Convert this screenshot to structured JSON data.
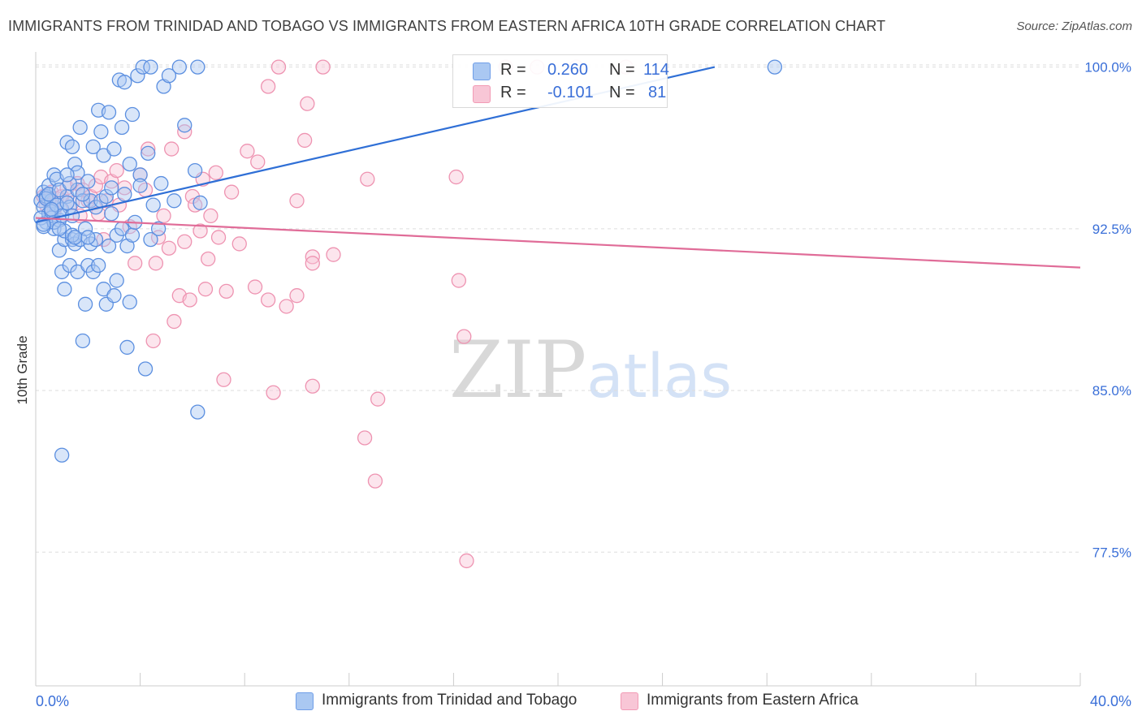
{
  "title": "IMMIGRANTS FROM TRINIDAD AND TOBAGO VS IMMIGRANTS FROM EASTERN AFRICA 10TH GRADE CORRELATION CHART",
  "source": "Source: ZipAtlas.com",
  "watermark": {
    "zip": "ZIP",
    "atlas": "atlas"
  },
  "legend": {
    "rows": [
      {
        "r_label": "R =",
        "r_value": "0.260",
        "n_label": "N =",
        "n_value": "114",
        "color": "#6f9ee8"
      },
      {
        "r_label": "R =",
        "r_value": "-0.101",
        "n_label": "N =",
        "n_value": "81",
        "color": "#f29bb5"
      }
    ]
  },
  "colors": {
    "blue_fill": "#aac8f2",
    "blue_stroke": "#5b8fe0",
    "blue_line": "#2f6fd6",
    "pink_fill": "#f8c6d6",
    "pink_stroke": "#ee93b1",
    "pink_line": "#e06c98",
    "tick_label": "#3a6fd8",
    "grid": "#dddddd"
  },
  "chart_data": {
    "type": "scatter",
    "title": "IMMIGRANTS FROM TRINIDAD AND TOBAGO VS IMMIGRANTS FROM EASTERN AFRICA 10TH GRADE CORRELATION CHART",
    "xlabel": "",
    "ylabel": "10th Grade",
    "xlim": [
      0,
      40
    ],
    "ylim": [
      71.3,
      100.7
    ],
    "x_tick_labels": [
      "0.0%",
      "40.0%"
    ],
    "y_ticks": [
      77.5,
      85.0,
      92.5,
      100.0
    ],
    "y_tick_labels": [
      "77.5%",
      "85.0%",
      "92.5%",
      "100.0%"
    ],
    "grid": true,
    "legend_position": "top-center",
    "series": [
      {
        "name": "Immigrants from Trinidad and Tobago",
        "color": "#6f9ee8",
        "trend": {
          "x": [
            0,
            26
          ],
          "y": [
            92.8,
            100.0
          ]
        },
        "points": [
          [
            0.2,
            93.8
          ],
          [
            0.3,
            94.2
          ],
          [
            0.3,
            93.5
          ],
          [
            0.4,
            92.8
          ],
          [
            0.4,
            94.0
          ],
          [
            0.5,
            93.2
          ],
          [
            0.5,
            94.5
          ],
          [
            0.6,
            93.0
          ],
          [
            0.6,
            93.8
          ],
          [
            0.7,
            95.0
          ],
          [
            0.7,
            92.5
          ],
          [
            0.8,
            93.6
          ],
          [
            0.8,
            94.8
          ],
          [
            0.9,
            91.5
          ],
          [
            0.9,
            92.9
          ],
          [
            1.0,
            93.4
          ],
          [
            1.0,
            90.5
          ],
          [
            1.1,
            92.0
          ],
          [
            1.1,
            89.7
          ],
          [
            1.2,
            94.0
          ],
          [
            1.2,
            96.5
          ],
          [
            1.3,
            93.5
          ],
          [
            1.3,
            90.8
          ],
          [
            1.4,
            92.0
          ],
          [
            1.4,
            96.3
          ],
          [
            1.5,
            95.5
          ],
          [
            1.5,
            91.8
          ],
          [
            1.6,
            94.3
          ],
          [
            1.6,
            90.5
          ],
          [
            1.7,
            97.2
          ],
          [
            1.7,
            92.0
          ],
          [
            1.8,
            87.3
          ],
          [
            1.8,
            93.8
          ],
          [
            1.9,
            89.0
          ],
          [
            1.9,
            92.5
          ],
          [
            2.0,
            90.8
          ],
          [
            2.0,
            94.7
          ],
          [
            2.1,
            91.8
          ],
          [
            2.1,
            93.8
          ],
          [
            2.2,
            96.3
          ],
          [
            2.2,
            90.5
          ],
          [
            2.3,
            93.5
          ],
          [
            2.3,
            92.0
          ],
          [
            2.4,
            98.0
          ],
          [
            2.4,
            90.8
          ],
          [
            2.5,
            97.0
          ],
          [
            2.5,
            93.8
          ],
          [
            2.6,
            89.7
          ],
          [
            2.6,
            95.9
          ],
          [
            2.7,
            89.0
          ],
          [
            2.7,
            94.0
          ],
          [
            2.8,
            97.9
          ],
          [
            2.8,
            91.7
          ],
          [
            2.9,
            93.2
          ],
          [
            2.9,
            94.4
          ],
          [
            3.0,
            89.4
          ],
          [
            3.0,
            96.2
          ],
          [
            3.1,
            90.1
          ],
          [
            3.1,
            92.2
          ],
          [
            3.2,
            99.4
          ],
          [
            3.3,
            92.5
          ],
          [
            3.3,
            97.2
          ],
          [
            3.4,
            94.1
          ],
          [
            3.4,
            99.3
          ],
          [
            3.5,
            87.0
          ],
          [
            3.5,
            91.7
          ],
          [
            3.6,
            89.1
          ],
          [
            3.6,
            95.5
          ],
          [
            3.7,
            92.2
          ],
          [
            3.7,
            97.8
          ],
          [
            3.8,
            92.8
          ],
          [
            3.9,
            99.6
          ],
          [
            4.0,
            95.0
          ],
          [
            4.0,
            94.5
          ],
          [
            4.1,
            100.0
          ],
          [
            4.2,
            86.0
          ],
          [
            4.3,
            96.0
          ],
          [
            4.4,
            100.0
          ],
          [
            4.4,
            92.0
          ],
          [
            4.5,
            93.6
          ],
          [
            4.7,
            92.5
          ],
          [
            4.8,
            94.6
          ],
          [
            4.9,
            99.1
          ],
          [
            5.1,
            99.6
          ],
          [
            5.3,
            93.8
          ],
          [
            5.7,
            97.3
          ],
          [
            6.1,
            95.2
          ],
          [
            6.2,
            84.0
          ],
          [
            6.3,
            93.7
          ],
          [
            0.2,
            93.0
          ],
          [
            0.3,
            92.6
          ],
          [
            0.4,
            93.9
          ],
          [
            0.5,
            94.1
          ],
          [
            0.6,
            93.3
          ],
          [
            0.7,
            92.8
          ],
          [
            0.8,
            93.6
          ],
          [
            0.9,
            94.3
          ],
          [
            1.0,
            93.1
          ],
          [
            1.1,
            92.4
          ],
          [
            1.2,
            93.7
          ],
          [
            1.3,
            94.6
          ],
          [
            1.4,
            92.2
          ],
          [
            1.5,
            92.1
          ],
          [
            1.6,
            95.1
          ],
          [
            1.0,
            82.0
          ],
          [
            2.0,
            92.1
          ],
          [
            1.2,
            95.0
          ],
          [
            5.5,
            100.0
          ],
          [
            6.2,
            100.0
          ],
          [
            28.3,
            100.0
          ],
          [
            0.3,
            92.7
          ],
          [
            0.6,
            93.4
          ],
          [
            0.9,
            92.5
          ],
          [
            1.4,
            93.1
          ],
          [
            1.8,
            94.1
          ]
        ]
      },
      {
        "name": "Immigrants from Eastern Africa",
        "color": "#f29bb5",
        "trend": {
          "x": [
            0,
            40
          ],
          "y": [
            93.0,
            90.7
          ]
        },
        "points": [
          [
            0.3,
            94.0
          ],
          [
            0.4,
            93.6
          ],
          [
            0.5,
            93.8
          ],
          [
            0.6,
            94.2
          ],
          [
            0.7,
            93.3
          ],
          [
            0.8,
            93.9
          ],
          [
            1.0,
            94.0
          ],
          [
            1.2,
            94.4
          ],
          [
            1.4,
            93.7
          ],
          [
            1.6,
            94.6
          ],
          [
            1.7,
            93.1
          ],
          [
            1.8,
            94.3
          ],
          [
            2.0,
            93.8
          ],
          [
            2.1,
            94.0
          ],
          [
            2.3,
            94.5
          ],
          [
            2.4,
            93.2
          ],
          [
            2.5,
            94.9
          ],
          [
            2.6,
            92.0
          ],
          [
            2.7,
            93.8
          ],
          [
            2.9,
            94.7
          ],
          [
            3.1,
            95.2
          ],
          [
            3.2,
            93.6
          ],
          [
            3.4,
            94.4
          ],
          [
            3.6,
            92.6
          ],
          [
            3.8,
            90.9
          ],
          [
            4.0,
            95.0
          ],
          [
            4.2,
            94.3
          ],
          [
            4.3,
            96.2
          ],
          [
            4.5,
            87.3
          ],
          [
            4.6,
            90.9
          ],
          [
            4.7,
            92.1
          ],
          [
            4.9,
            93.1
          ],
          [
            5.1,
            91.6
          ],
          [
            5.2,
            96.2
          ],
          [
            5.3,
            88.2
          ],
          [
            5.5,
            89.4
          ],
          [
            5.7,
            91.9
          ],
          [
            5.9,
            89.2
          ],
          [
            6.0,
            94.0
          ],
          [
            6.1,
            93.6
          ],
          [
            6.3,
            92.4
          ],
          [
            6.5,
            89.7
          ],
          [
            6.6,
            91.1
          ],
          [
            6.7,
            93.1
          ],
          [
            6.9,
            95.1
          ],
          [
            7.0,
            92.1
          ],
          [
            7.3,
            89.6
          ],
          [
            7.5,
            94.2
          ],
          [
            7.8,
            91.8
          ],
          [
            8.1,
            96.1
          ],
          [
            8.4,
            89.8
          ],
          [
            8.5,
            95.6
          ],
          [
            8.9,
            89.2
          ],
          [
            8.9,
            99.1
          ],
          [
            9.1,
            84.9
          ],
          [
            9.6,
            88.9
          ],
          [
            10.0,
            89.4
          ],
          [
            10.0,
            93.8
          ],
          [
            10.3,
            96.6
          ],
          [
            10.4,
            98.3
          ],
          [
            10.6,
            85.2
          ],
          [
            10.6,
            91.2
          ],
          [
            10.6,
            90.9
          ],
          [
            11.4,
            91.3
          ],
          [
            12.6,
            82.8
          ],
          [
            13.0,
            80.8
          ],
          [
            13.1,
            84.6
          ],
          [
            16.4,
            87.5
          ],
          [
            16.1,
            94.9
          ],
          [
            16.2,
            90.1
          ],
          [
            16.5,
            77.1
          ],
          [
            18.0,
            100.0
          ],
          [
            19.2,
            100.0
          ],
          [
            20.7,
            100.0
          ],
          [
            5.7,
            97.0
          ],
          [
            6.4,
            94.8
          ],
          [
            7.2,
            85.5
          ],
          [
            11.0,
            100.0
          ],
          [
            12.7,
            94.8
          ],
          [
            22.6,
            100.0
          ],
          [
            9.3,
            100.0
          ]
        ]
      }
    ]
  }
}
